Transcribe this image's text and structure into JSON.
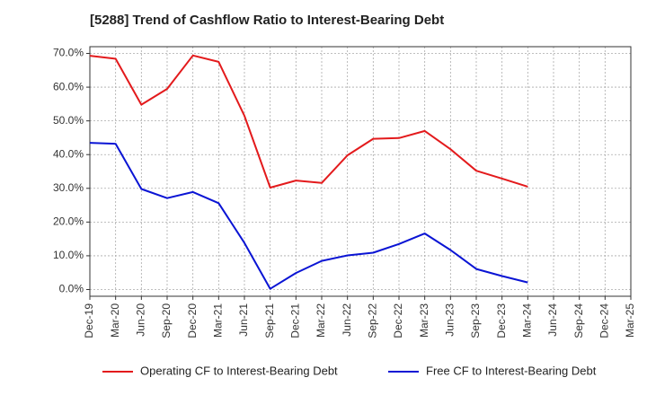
{
  "chart_data": {
    "type": "line",
    "title": "[5288]  Trend of Cashflow Ratio to Interest-Bearing Debt",
    "xlabel": "",
    "ylabel": "",
    "categories": [
      "Dec-19",
      "Mar-20",
      "Jun-20",
      "Sep-20",
      "Dec-20",
      "Mar-21",
      "Jun-21",
      "Sep-21",
      "Dec-21",
      "Mar-22",
      "Jun-22",
      "Sep-22",
      "Dec-22",
      "Mar-23",
      "Jun-23",
      "Sep-23",
      "Dec-23",
      "Mar-24",
      "Jun-24",
      "Sep-24",
      "Dec-24",
      "Mar-25"
    ],
    "ylim": [
      -2,
      72
    ],
    "yticks": [
      0,
      10,
      20,
      30,
      40,
      50,
      60,
      70
    ],
    "ytick_labels": [
      "0.0%",
      "10.0%",
      "20.0%",
      "30.0%",
      "40.0%",
      "50.0%",
      "60.0%",
      "70.0%"
    ],
    "grid": true,
    "legend_position": "bottom",
    "series": [
      {
        "name": "Operating CF to Interest-Bearing Debt",
        "color": "#e31a1c",
        "values": [
          69.3,
          68.4,
          54.8,
          59.5,
          69.4,
          67.5,
          51.5,
          30.2,
          32.3,
          31.6,
          39.8,
          44.7,
          44.9,
          47.0,
          41.6,
          35.2,
          32.9,
          30.5,
          null,
          null,
          null,
          null
        ]
      },
      {
        "name": "Free CF to Interest-Bearing Debt",
        "color": "#0a14d4",
        "values": [
          43.5,
          43.2,
          29.8,
          27.1,
          28.9,
          25.6,
          13.8,
          0.2,
          4.9,
          8.5,
          10.1,
          10.9,
          13.5,
          16.6,
          11.7,
          6.1,
          4.0,
          2.1,
          null,
          null,
          null,
          null
        ]
      }
    ]
  }
}
